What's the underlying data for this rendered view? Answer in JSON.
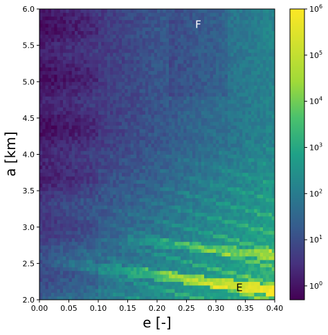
{
  "chart_data": {
    "type": "heatmap",
    "xlabel": "e [-]",
    "ylabel": "a [km]",
    "xlim": [
      0.0,
      0.4
    ],
    "ylim": [
      2.0,
      6.0
    ],
    "xticks": [
      "0.00",
      "0.05",
      "0.10",
      "0.15",
      "0.20",
      "0.25",
      "0.30",
      "0.35",
      "0.40"
    ],
    "yticks": [
      "2.0",
      "2.5",
      "3.0",
      "3.5",
      "4.0",
      "4.5",
      "5.0",
      "5.5",
      "6.0"
    ],
    "colorbar": {
      "scale": "log",
      "range": [
        0.5,
        1000000
      ],
      "ticks": [
        {
          "base": "10",
          "exp": "0",
          "value": 1
        },
        {
          "base": "10",
          "exp": "1",
          "value": 10
        },
        {
          "base": "10",
          "exp": "2",
          "value": 100
        },
        {
          "base": "10",
          "exp": "3",
          "value": 1000
        },
        {
          "base": "10",
          "exp": "4",
          "value": 10000
        },
        {
          "base": "10",
          "exp": "5",
          "value": 100000
        },
        {
          "base": "10",
          "exp": "6",
          "value": 1000000
        }
      ],
      "colormap": "viridis"
    },
    "bins": {
      "x_count": 80,
      "y_count": 80
    },
    "annotations": [
      {
        "text": "F",
        "e": 0.27,
        "a": 5.78,
        "color": "#ffffff"
      },
      {
        "text": "E",
        "e": 0.34,
        "a": 2.16,
        "color": "#000000"
      }
    ]
  }
}
